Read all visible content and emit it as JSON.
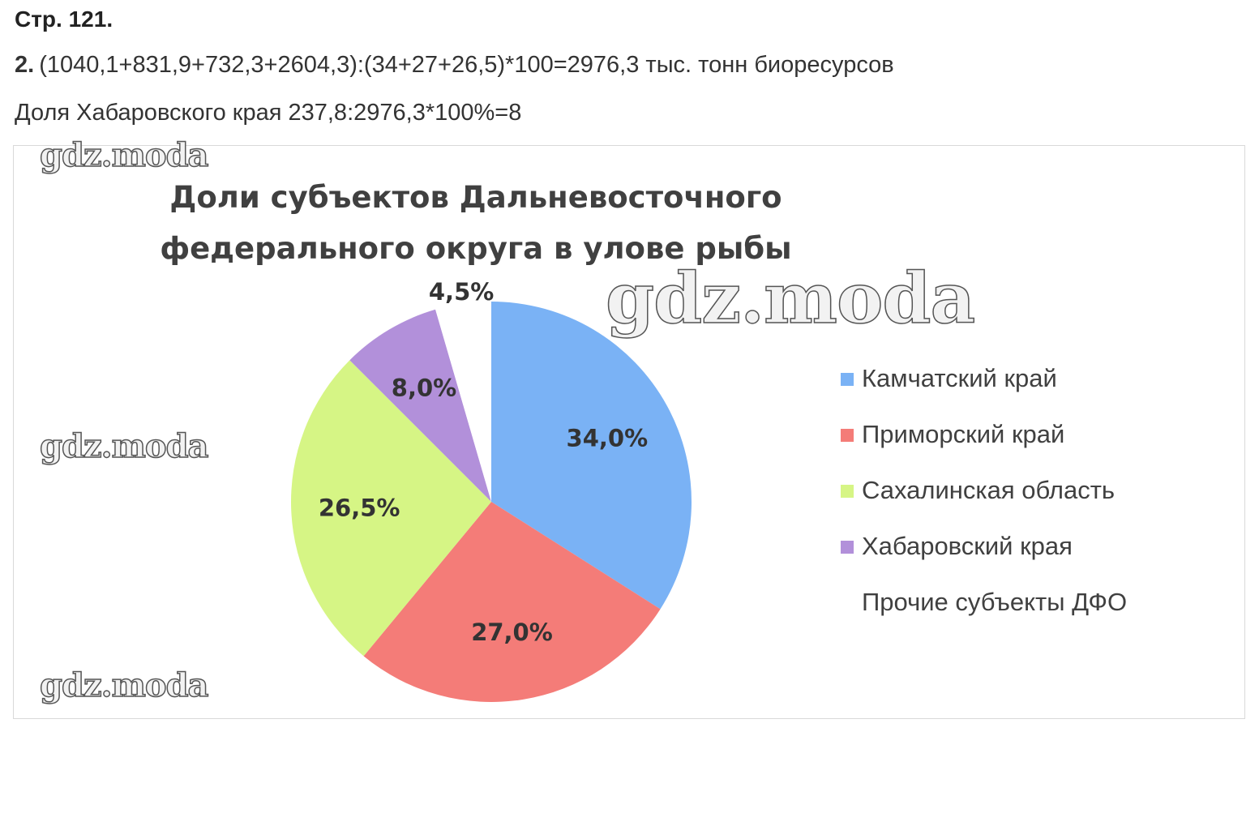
{
  "header": {
    "page_ref": "Стр. 121.",
    "task_number": "2.",
    "formula": "(1040,1+831,9+732,3+2604,3):(34+27+26,5)*100=2976,3 тыс. тонн биоресурсов",
    "share_line": "Доля Хабаровского края 237,8:2976,3*100%=8"
  },
  "watermarks": [
    "gdz.moda",
    "gdz.moda",
    "gdz.moda",
    "gdz.moda"
  ],
  "chart_data": {
    "type": "pie",
    "title": "Доли субъектов Дальневосточного федерального округа в улове рыбы",
    "legend_position": "right",
    "slices": [
      {
        "name": "Камчатский край",
        "value": 34.0,
        "label": "34,0%",
        "color": "#7ab2f5"
      },
      {
        "name": "Приморский край",
        "value": 27.0,
        "label": "27,0%",
        "color": "#f47c78"
      },
      {
        "name": "Сахалинская область",
        "value": 26.5,
        "label": "26,5%",
        "color": "#d6f585"
      },
      {
        "name": "Хабаровский края",
        "value": 8.0,
        "label": "8,0%",
        "color": "#b290da"
      },
      {
        "name": "Прочие субъекты ДФО",
        "value": 4.5,
        "label": "4,5%",
        "color": "#ffffff"
      }
    ]
  }
}
